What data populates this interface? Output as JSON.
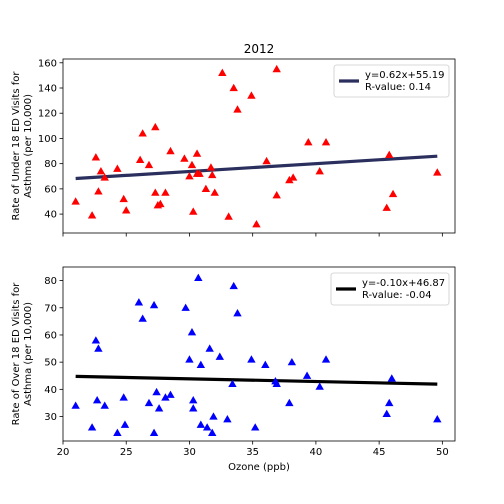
{
  "chart_data": [
    {
      "type": "scatter",
      "title": "2012",
      "xlabel": "",
      "ylabel": "Rate of Under 18 ED Visits for\nAsthma (per 10,000)",
      "xlim": [
        20.0,
        51.0
      ],
      "ylim": [
        25,
        163
      ],
      "xticks": [
        20,
        25,
        30,
        35,
        40,
        45,
        50
      ],
      "yticks": [
        40,
        60,
        80,
        100,
        120,
        140,
        160
      ],
      "show_x_tick_labels": false,
      "grid": false,
      "legend_location": "upper right",
      "series": [
        {
          "marker": "triangle",
          "color": "#ff0000",
          "points": [
            [
              21.0,
              50
            ],
            [
              22.3,
              39
            ],
            [
              22.6,
              85
            ],
            [
              22.8,
              58
            ],
            [
              23.0,
              74
            ],
            [
              23.3,
              69
            ],
            [
              24.3,
              76
            ],
            [
              24.8,
              52
            ],
            [
              25.0,
              43
            ],
            [
              26.1,
              83
            ],
            [
              26.3,
              104
            ],
            [
              26.8,
              79
            ],
            [
              27.3,
              57
            ],
            [
              27.3,
              109
            ],
            [
              27.5,
              47
            ],
            [
              27.7,
              48
            ],
            [
              28.1,
              57
            ],
            [
              28.5,
              90
            ],
            [
              29.6,
              84
            ],
            [
              30.0,
              70
            ],
            [
              30.2,
              79
            ],
            [
              30.3,
              42
            ],
            [
              30.6,
              88
            ],
            [
              30.6,
              72
            ],
            [
              30.8,
              72
            ],
            [
              31.3,
              60
            ],
            [
              31.7,
              77
            ],
            [
              31.8,
              71
            ],
            [
              32.0,
              57
            ],
            [
              32.6,
              152
            ],
            [
              33.1,
              38
            ],
            [
              33.5,
              140
            ],
            [
              33.8,
              123
            ],
            [
              34.9,
              134
            ],
            [
              35.3,
              32
            ],
            [
              36.1,
              82
            ],
            [
              36.9,
              55
            ],
            [
              36.9,
              155
            ],
            [
              37.9,
              67
            ],
            [
              38.2,
              69
            ],
            [
              39.4,
              97
            ],
            [
              40.3,
              74
            ],
            [
              40.8,
              97
            ],
            [
              45.6,
              45
            ],
            [
              45.8,
              87
            ],
            [
              46.1,
              56
            ],
            [
              49.6,
              73
            ]
          ]
        }
      ],
      "regression": {
        "label": "y=0.62x+55.19\nR-value: 0.14",
        "slope": 0.62,
        "intercept": 55.19,
        "x_range": [
          21.0,
          49.6
        ],
        "color": "#2b2f5e"
      }
    },
    {
      "type": "scatter",
      "title": "",
      "xlabel": "Ozone (ppb)",
      "ylabel": "Rate of Over 18 ED Visits for\nAsthma (per 10,000)",
      "xlim": [
        20.0,
        51.0
      ],
      "ylim": [
        21,
        85
      ],
      "xticks": [
        20,
        25,
        30,
        35,
        40,
        45,
        50
      ],
      "yticks": [
        30,
        40,
        50,
        60,
        70,
        80
      ],
      "show_x_tick_labels": true,
      "grid": false,
      "legend_location": "upper right",
      "series": [
        {
          "marker": "triangle",
          "color": "#0000ff",
          "points": [
            [
              21.0,
              34
            ],
            [
              22.3,
              26
            ],
            [
              22.6,
              58
            ],
            [
              22.7,
              36
            ],
            [
              22.8,
              55
            ],
            [
              23.3,
              34
            ],
            [
              24.3,
              24
            ],
            [
              24.8,
              37
            ],
            [
              24.9,
              27
            ],
            [
              26.0,
              72
            ],
            [
              26.3,
              66
            ],
            [
              26.8,
              35
            ],
            [
              27.2,
              24
            ],
            [
              27.2,
              71
            ],
            [
              27.4,
              39
            ],
            [
              27.6,
              33
            ],
            [
              28.1,
              37
            ],
            [
              28.5,
              38
            ],
            [
              29.7,
              70
            ],
            [
              30.0,
              51
            ],
            [
              30.2,
              61
            ],
            [
              30.3,
              33
            ],
            [
              30.3,
              36
            ],
            [
              30.7,
              81
            ],
            [
              30.9,
              27
            ],
            [
              30.9,
              49
            ],
            [
              31.4,
              26
            ],
            [
              31.6,
              55
            ],
            [
              31.8,
              24
            ],
            [
              31.9,
              30
            ],
            [
              32.4,
              52
            ],
            [
              33.0,
              29
            ],
            [
              33.4,
              42
            ],
            [
              33.5,
              78
            ],
            [
              33.8,
              68
            ],
            [
              34.9,
              51
            ],
            [
              35.2,
              26
            ],
            [
              36.0,
              49
            ],
            [
              36.8,
              43
            ],
            [
              36.9,
              42
            ],
            [
              37.9,
              35
            ],
            [
              38.1,
              50
            ],
            [
              39.3,
              45
            ],
            [
              40.3,
              41
            ],
            [
              40.8,
              51
            ],
            [
              45.6,
              31
            ],
            [
              45.8,
              35
            ],
            [
              46.0,
              44
            ],
            [
              49.6,
              29
            ]
          ]
        }
      ],
      "regression": {
        "label": "y=-0.10x+46.87\nR-value: -0.04",
        "slope": -0.1,
        "intercept": 46.87,
        "x_range": [
          21.0,
          49.6
        ],
        "color": "#000000"
      }
    }
  ]
}
